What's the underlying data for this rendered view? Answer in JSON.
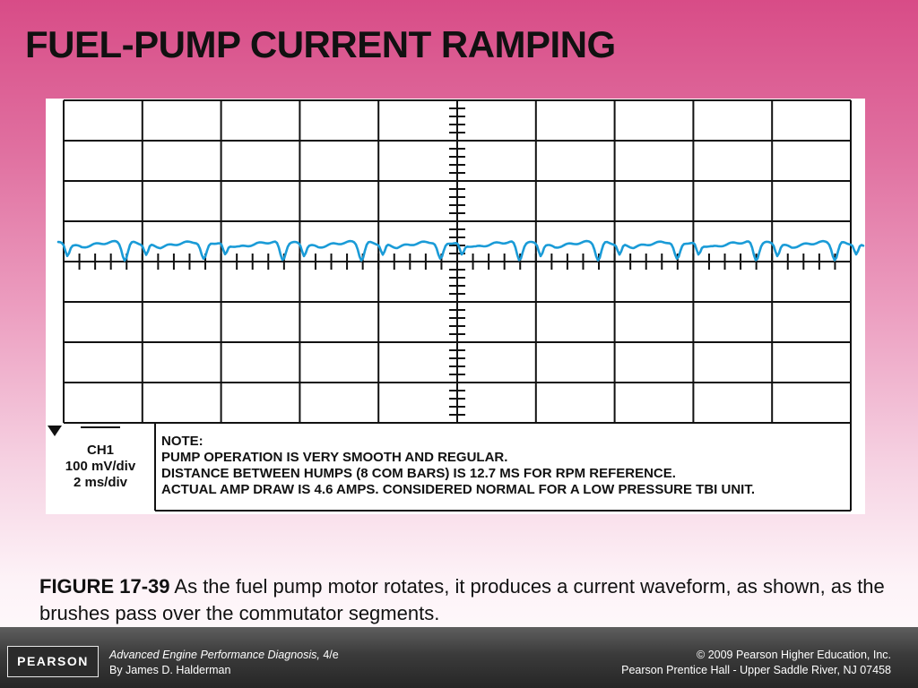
{
  "slide": {
    "title": "FUEL-PUMP CURRENT RAMPING"
  },
  "scope": {
    "channel_label": "CH1",
    "ch1_marker": "—",
    "volts_per_div": "100 mV/div",
    "time_per_div": "2 ms/div",
    "trace_color": "#1a9bd7",
    "note_lines": [
      "NOTE:",
      "PUMP OPERATION IS VERY SMOOTH AND REGULAR.",
      "DISTANCE BETWEEN HUMPS (8 COM BARS) IS 12.7 MS FOR RPM REFERENCE.",
      "ACTUAL AMP DRAW IS 4.6 AMPS. CONSIDERED NORMAL FOR A LOW PRESSURE TBI UNIT."
    ]
  },
  "caption": {
    "figure_label": "FIGURE 17-39",
    "text": "As the fuel pump motor rotates, it produces a current waveform, as shown, as the brushes pass over the commutator segments."
  },
  "footer": {
    "logo_text": "PEARSON",
    "book_title": "Advanced Engine Performance Diagnosis,",
    "edition": "4/e",
    "author": "By James D. Halderman",
    "copyright": "© 2009 Pearson Higher Education, Inc.",
    "publisher": "Pearson Prentice Hall - Upper Saddle River, NJ 07458"
  },
  "colors": {
    "accent_pink": "#d84c87",
    "footer_dark": "#2b2b2b"
  }
}
